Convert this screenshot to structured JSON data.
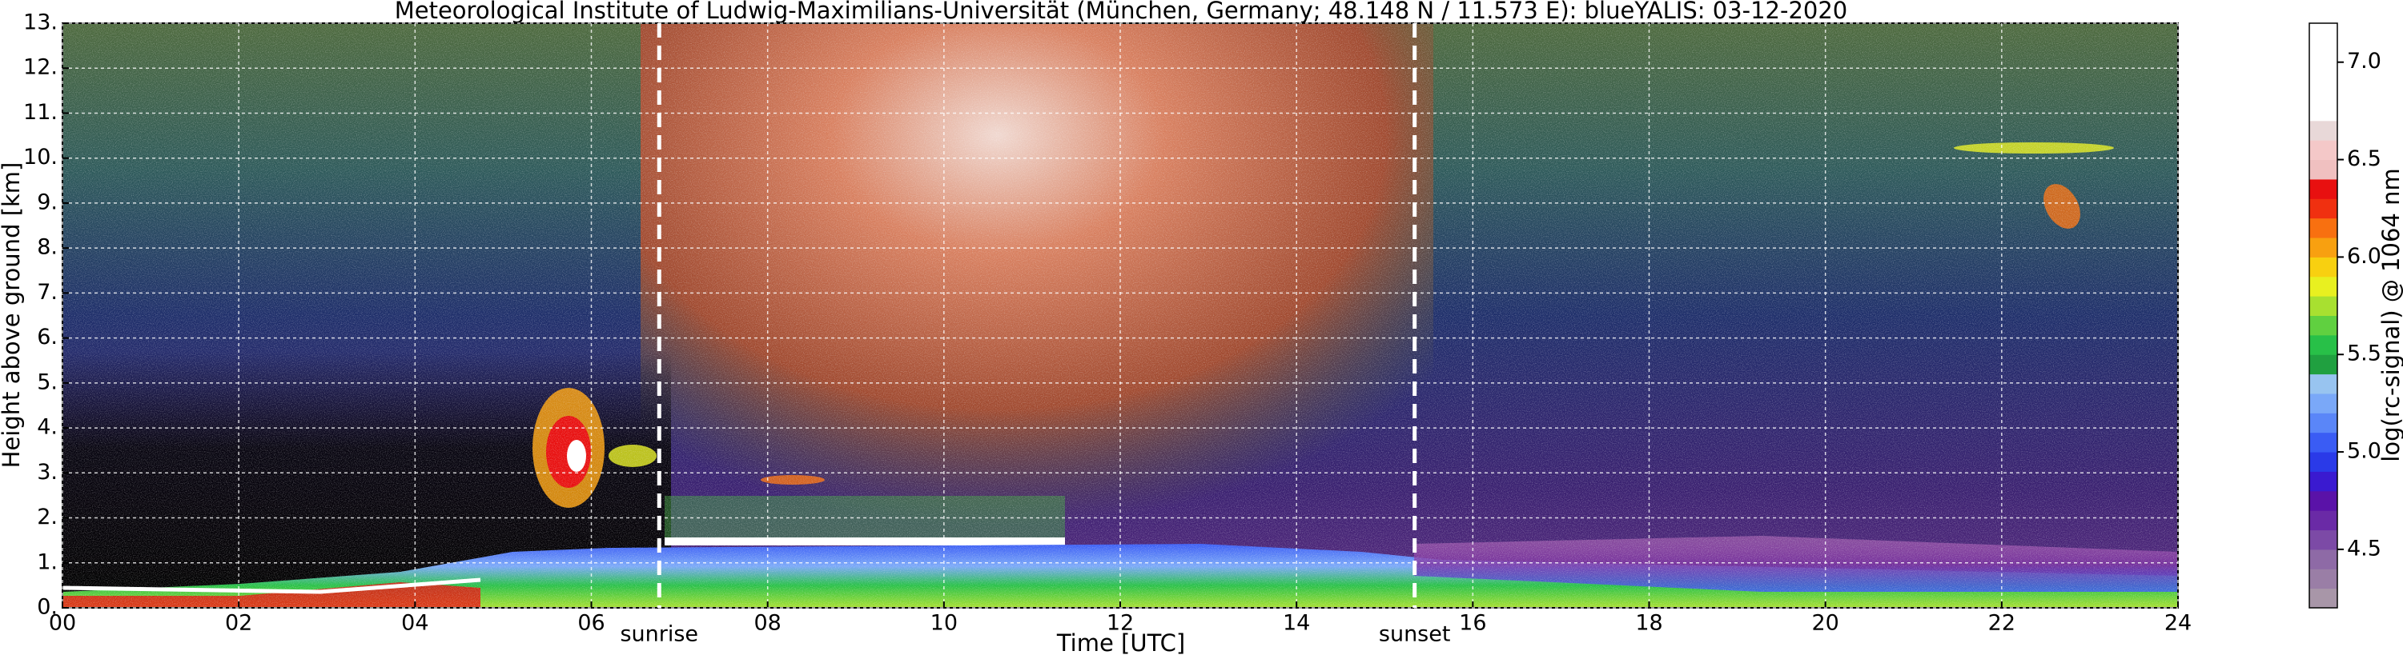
{
  "chart_data": {
    "type": "heatmap",
    "title": "Meteorological Institute of Ludwig-Maximilians-Universität (München, Germany; 48.148 N / 11.573 E):    blueYALIS: 03-12-2020",
    "xlabel": "Time [UTC]",
    "ylabel": "Height above ground [km]",
    "xlim": [
      0,
      24
    ],
    "xticks": [
      {
        "value": 0,
        "label": "00"
      },
      {
        "value": 2,
        "label": "02"
      },
      {
        "value": 4,
        "label": "04"
      },
      {
        "value": 6,
        "label": "06"
      },
      {
        "value": 8,
        "label": "08"
      },
      10,
      12,
      14,
      16,
      18,
      20,
      22,
      24
    ],
    "ylim": [
      0,
      13
    ],
    "yticks": [
      {
        "value": 0,
        "label": "0."
      },
      {
        "value": 1,
        "label": "1."
      },
      {
        "value": 2,
        "label": "2."
      },
      {
        "value": 3,
        "label": "3."
      },
      {
        "value": 4,
        "label": "4."
      },
      {
        "value": 5,
        "label": "5."
      },
      {
        "value": 6,
        "label": "6."
      },
      {
        "value": 7,
        "label": "7."
      },
      {
        "value": 8,
        "label": "8."
      },
      {
        "value": 9,
        "label": "9."
      },
      {
        "value": 10,
        "label": "10."
      },
      {
        "value": 11,
        "label": "11."
      },
      {
        "value": 12,
        "label": "12."
      },
      {
        "value": 13,
        "label": "13."
      }
    ],
    "grid": true,
    "annotations": [
      {
        "label": "sunrise",
        "x": 6.77
      },
      {
        "label": "sunset",
        "x": 15.34
      }
    ],
    "colorbar": {
      "label": "log(rc-signal) @ 1064 nm",
      "clim": [
        4.2,
        7.2
      ],
      "ticks": [
        4.5,
        {
          "value": 5,
          "label": "5.0"
        },
        5.5,
        {
          "value": 6,
          "label": "6.0"
        },
        6.5,
        {
          "value": 7,
          "label": "7.0"
        }
      ],
      "colors": [
        "#a896a8",
        "#9a7ea6",
        "#8e6aa6",
        "#7c4aa6",
        "#6a2aa6",
        "#5a12a8",
        "#3a1ad0",
        "#2a3ae8",
        "#3a5cf4",
        "#5a86f8",
        "#7aa8f8",
        "#98c4f0",
        "#20a040",
        "#28c048",
        "#60d040",
        "#a8e030",
        "#e8f020",
        "#f8d010",
        "#f8a010",
        "#f87010",
        "#f03010",
        "#e81010",
        "#f0c0c0",
        "#f4c8c8",
        "#e8d8d8",
        "#ffffff",
        "#ffffff",
        "#ffffff",
        "#ffffff",
        "#ffffff"
      ]
    }
  }
}
